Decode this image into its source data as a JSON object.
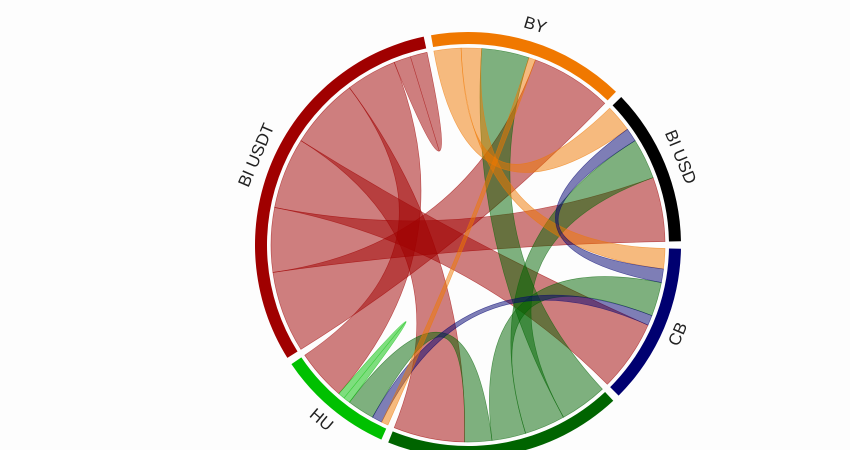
{
  "chart_data": {
    "type": "chord",
    "groups": [
      {
        "name": "BY",
        "color": "#f07800"
      },
      {
        "name": "BI USD",
        "color": "#000000"
      },
      {
        "name": "CB",
        "color": "#000070"
      },
      {
        "name": null,
        "color": "#006400"
      },
      {
        "name": "HU",
        "color": "#00c000"
      },
      {
        "name": "BI USDT",
        "color": "#a00000"
      }
    ],
    "matrix": [
      [
        0,
        8,
        6,
        14,
        2,
        24
      ],
      [
        8,
        0,
        4,
        12,
        0,
        19
      ],
      [
        6,
        4,
        0,
        10,
        3,
        21
      ],
      [
        14,
        12,
        10,
        0,
        8,
        21
      ],
      [
        2,
        0,
        3,
        8,
        4,
        15
      ],
      [
        24,
        19,
        21,
        21,
        15,
        10
      ]
    ]
  }
}
